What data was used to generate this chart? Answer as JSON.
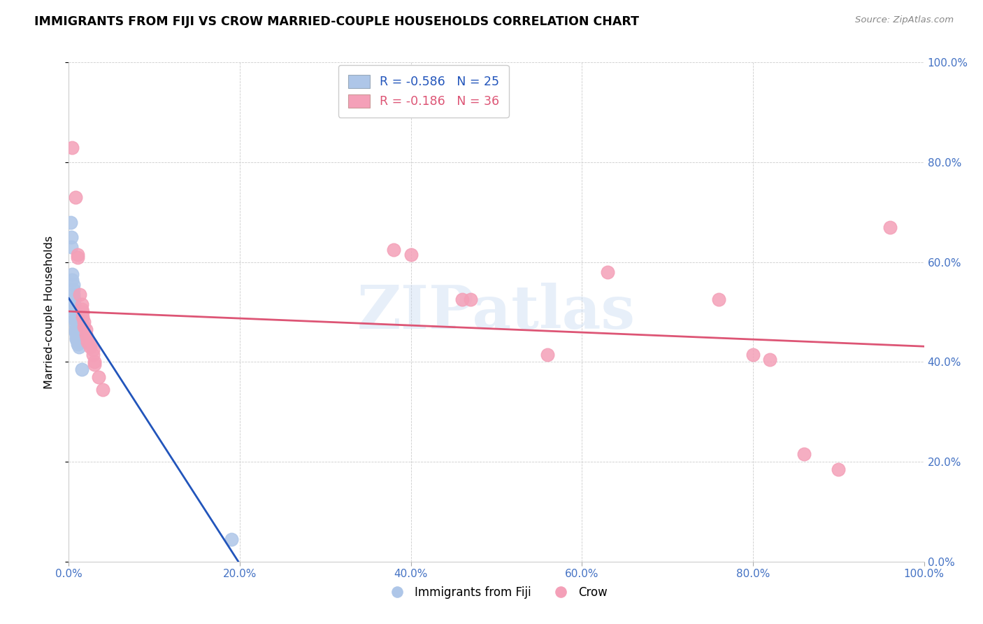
{
  "title": "IMMIGRANTS FROM FIJI VS CROW MARRIED-COUPLE HOUSEHOLDS CORRELATION CHART",
  "source": "Source: ZipAtlas.com",
  "ylabel": "Married-couple Households",
  "xlim": [
    0,
    1.0
  ],
  "ylim": [
    0,
    1.0
  ],
  "fiji_color": "#aec6e8",
  "crow_color": "#f4a0b8",
  "fiji_line_color": "#2255bb",
  "crow_line_color": "#dd5575",
  "fiji_R": -0.586,
  "fiji_N": 25,
  "crow_R": -0.186,
  "crow_N": 36,
  "background_color": "#ffffff",
  "grid_color": "#cccccc",
  "tick_color": "#4472c4",
  "fiji_points": [
    [
      0.002,
      0.68
    ],
    [
      0.003,
      0.65
    ],
    [
      0.003,
      0.63
    ],
    [
      0.004,
      0.575
    ],
    [
      0.004,
      0.565
    ],
    [
      0.005,
      0.555
    ],
    [
      0.005,
      0.545
    ],
    [
      0.005,
      0.535
    ],
    [
      0.006,
      0.525
    ],
    [
      0.006,
      0.515
    ],
    [
      0.006,
      0.505
    ],
    [
      0.007,
      0.495
    ],
    [
      0.007,
      0.485
    ],
    [
      0.007,
      0.485
    ],
    [
      0.008,
      0.475
    ],
    [
      0.008,
      0.465
    ],
    [
      0.008,
      0.46
    ],
    [
      0.009,
      0.455
    ],
    [
      0.009,
      0.45
    ],
    [
      0.009,
      0.445
    ],
    [
      0.01,
      0.44
    ],
    [
      0.01,
      0.435
    ],
    [
      0.012,
      0.43
    ],
    [
      0.015,
      0.385
    ],
    [
      0.19,
      0.045
    ]
  ],
  "crow_points": [
    [
      0.004,
      0.83
    ],
    [
      0.008,
      0.73
    ],
    [
      0.01,
      0.615
    ],
    [
      0.01,
      0.61
    ],
    [
      0.013,
      0.535
    ],
    [
      0.015,
      0.515
    ],
    [
      0.015,
      0.505
    ],
    [
      0.016,
      0.5
    ],
    [
      0.016,
      0.49
    ],
    [
      0.018,
      0.48
    ],
    [
      0.018,
      0.47
    ],
    [
      0.02,
      0.465
    ],
    [
      0.02,
      0.455
    ],
    [
      0.021,
      0.45
    ],
    [
      0.022,
      0.445
    ],
    [
      0.022,
      0.44
    ],
    [
      0.025,
      0.435
    ],
    [
      0.025,
      0.43
    ],
    [
      0.028,
      0.425
    ],
    [
      0.028,
      0.415
    ],
    [
      0.03,
      0.4
    ],
    [
      0.03,
      0.395
    ],
    [
      0.035,
      0.37
    ],
    [
      0.04,
      0.345
    ],
    [
      0.38,
      0.625
    ],
    [
      0.4,
      0.615
    ],
    [
      0.46,
      0.525
    ],
    [
      0.47,
      0.525
    ],
    [
      0.56,
      0.415
    ],
    [
      0.63,
      0.58
    ],
    [
      0.76,
      0.525
    ],
    [
      0.8,
      0.415
    ],
    [
      0.82,
      0.405
    ],
    [
      0.86,
      0.215
    ],
    [
      0.9,
      0.185
    ],
    [
      0.96,
      0.67
    ]
  ]
}
